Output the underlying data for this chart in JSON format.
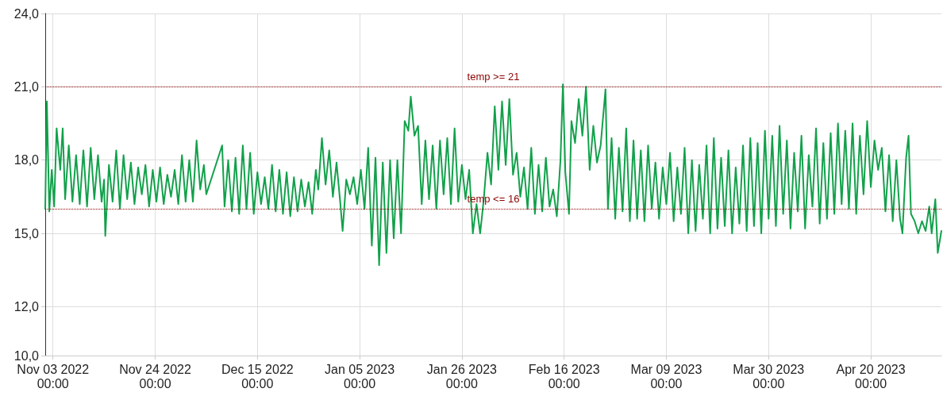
{
  "chart_data": {
    "type": "line",
    "grid": true,
    "marker": "none",
    "line_style": "solid",
    "xlim": [
      "2022-11-01T10:00",
      "2023-05-04T12:00"
    ],
    "xticks": [
      {
        "value": "2022-11-03T00:00",
        "label": "Nov 03 2022\n00:00"
      },
      {
        "value": "2022-11-24T00:00",
        "label": "Nov 24 2022\n00:00"
      },
      {
        "value": "2022-12-15T00:00",
        "label": "Dec 15 2022\n00:00"
      },
      {
        "value": "2023-01-05T00:00",
        "label": "Jan 05 2023\n00:00"
      },
      {
        "value": "2023-01-26T00:00",
        "label": "Jan 26 2023\n00:00"
      },
      {
        "value": "2023-02-16T00:00",
        "label": "Feb 16 2023\n00:00"
      },
      {
        "value": "2023-03-09T00:00",
        "label": "Mar 09 2023\n00:00"
      },
      {
        "value": "2023-03-30T00:00",
        "label": "Mar 30 2023\n00:00"
      },
      {
        "value": "2023-04-20T00:00",
        "label": "Apr 20 2023\n00:00"
      }
    ],
    "ylim": [
      10,
      24
    ],
    "yticks": [
      {
        "value": 10,
        "label": "10,0"
      },
      {
        "value": 12,
        "label": "12,0"
      },
      {
        "value": 15,
        "label": "15,0"
      },
      {
        "value": 18,
        "label": "18,0"
      },
      {
        "value": 21,
        "label": "21,0"
      },
      {
        "value": 24,
        "label": "24,0"
      }
    ],
    "ref_lines": [
      {
        "axis": "y",
        "value": 21,
        "label": "temp >= 21",
        "color": "#8b0000",
        "line_style": "dotted"
      },
      {
        "axis": "y",
        "value": 16,
        "label": "temp <= 16",
        "color": "#8b0000",
        "line_style": "dotted"
      }
    ],
    "series": [
      {
        "color": "#12a14b",
        "x": [
          "2022-11-01T10:00",
          "2022-11-01T18:00",
          "2022-11-02T06:00",
          "2022-11-02T18:00",
          "2022-11-03T06:00",
          "2022-11-03T18:00",
          "2022-11-04T12:00",
          "2022-11-05T00:00",
          "2022-11-05T12:00",
          "2022-11-06T06:00",
          "2022-11-07T00:00",
          "2022-11-07T18:00",
          "2022-11-08T12:00",
          "2022-11-09T06:00",
          "2022-11-10T00:00",
          "2022-11-10T18:00",
          "2022-11-11T12:00",
          "2022-11-12T06:00",
          "2022-11-13T00:00",
          "2022-11-13T12:00",
          "2022-11-13T18:00",
          "2022-11-14T12:00",
          "2022-11-15T06:00",
          "2022-11-16T00:00",
          "2022-11-16T18:00",
          "2022-11-17T12:00",
          "2022-11-18T06:00",
          "2022-11-19T00:00",
          "2022-11-19T18:00",
          "2022-11-20T12:00",
          "2022-11-21T06:00",
          "2022-11-22T00:00",
          "2022-11-22T18:00",
          "2022-11-23T12:00",
          "2022-11-24T06:00",
          "2022-11-25T00:00",
          "2022-11-25T18:00",
          "2022-11-26T12:00",
          "2022-11-27T06:00",
          "2022-11-28T00:00",
          "2022-11-28T18:00",
          "2022-11-29T12:00",
          "2022-11-30T06:00",
          "2022-12-01T00:00",
          "2022-12-01T18:00",
          "2022-12-02T12:00",
          "2022-12-03T06:00",
          "2022-12-04T00:00",
          "2022-12-04T12:00",
          "2022-12-07T18:00",
          "2022-12-08T06:00",
          "2022-12-09T00:00",
          "2022-12-09T18:00",
          "2022-12-10T12:00",
          "2022-12-11T06:00",
          "2022-12-12T00:00",
          "2022-12-12T18:00",
          "2022-12-13T12:00",
          "2022-12-14T06:00",
          "2022-12-15T00:00",
          "2022-12-15T18:00",
          "2022-12-16T12:00",
          "2022-12-17T06:00",
          "2022-12-18T00:00",
          "2022-12-18T18:00",
          "2022-12-19T12:00",
          "2022-12-20T06:00",
          "2022-12-21T00:00",
          "2022-12-21T18:00",
          "2022-12-22T12:00",
          "2022-12-23T06:00",
          "2022-12-24T00:00",
          "2022-12-24T18:00",
          "2022-12-25T12:00",
          "2022-12-26T06:00",
          "2022-12-27T00:00",
          "2022-12-27T12:00",
          "2022-12-28T06:00",
          "2022-12-29T00:00",
          "2022-12-29T18:00",
          "2022-12-30T12:00",
          "2022-12-31T06:00",
          "2023-01-01T00:00",
          "2023-01-01T12:00",
          "2023-01-02T06:00",
          "2023-01-03T00:00",
          "2023-01-03T18:00",
          "2023-01-04T12:00",
          "2023-01-05T06:00",
          "2023-01-06T00:00",
          "2023-01-06T18:00",
          "2023-01-07T12:00",
          "2023-01-08T06:00",
          "2023-01-09T00:00",
          "2023-01-09T18:00",
          "2023-01-10T12:00",
          "2023-01-11T06:00",
          "2023-01-12T00:00",
          "2023-01-12T18:00",
          "2023-01-13T12:00",
          "2023-01-14T06:00",
          "2023-01-15T00:00",
          "2023-01-15T12:00",
          "2023-01-16T06:00",
          "2023-01-17T00:00",
          "2023-01-17T18:00",
          "2023-01-18T12:00",
          "2023-01-19T06:00",
          "2023-01-20T00:00",
          "2023-01-20T18:00",
          "2023-01-21T12:00",
          "2023-01-22T06:00",
          "2023-01-23T00:00",
          "2023-01-23T18:00",
          "2023-01-24T12:00",
          "2023-01-25T06:00",
          "2023-01-26T00:00",
          "2023-01-26T18:00",
          "2023-01-27T12:00",
          "2023-01-28T06:00",
          "2023-01-29T00:00",
          "2023-01-29T18:00",
          "2023-01-30T12:00",
          "2023-01-31T06:00",
          "2023-02-01T00:00",
          "2023-02-01T18:00",
          "2023-02-02T12:00",
          "2023-02-03T06:00",
          "2023-02-04T00:00",
          "2023-02-04T18:00",
          "2023-02-05T12:00",
          "2023-02-06T06:00",
          "2023-02-07T00:00",
          "2023-02-07T18:00",
          "2023-02-08T12:00",
          "2023-02-09T06:00",
          "2023-02-10T00:00",
          "2023-02-10T18:00",
          "2023-02-11T12:00",
          "2023-02-12T06:00",
          "2023-02-13T00:00",
          "2023-02-13T18:00",
          "2023-02-14T12:00",
          "2023-02-15T06:00",
          "2023-02-15T18:00",
          "2023-02-16T06:00",
          "2023-02-17T00:00",
          "2023-02-17T12:00",
          "2023-02-18T06:00",
          "2023-02-19T00:00",
          "2023-02-19T18:00",
          "2023-02-20T12:00",
          "2023-02-21T06:00",
          "2023-02-22T00:00",
          "2023-02-22T18:00",
          "2023-02-23T12:00",
          "2023-02-24T12:00",
          "2023-02-25T00:00",
          "2023-02-25T18:00",
          "2023-02-26T12:00",
          "2023-02-27T06:00",
          "2023-02-28T00:00",
          "2023-02-28T18:00",
          "2023-03-01T12:00",
          "2023-03-02T06:00",
          "2023-03-03T00:00",
          "2023-03-03T18:00",
          "2023-03-04T12:00",
          "2023-03-05T06:00",
          "2023-03-06T00:00",
          "2023-03-06T18:00",
          "2023-03-07T12:00",
          "2023-03-08T06:00",
          "2023-03-09T00:00",
          "2023-03-09T18:00",
          "2023-03-10T12:00",
          "2023-03-11T06:00",
          "2023-03-12T00:00",
          "2023-03-12T18:00",
          "2023-03-13T12:00",
          "2023-03-14T06:00",
          "2023-03-15T00:00",
          "2023-03-15T18:00",
          "2023-03-16T12:00",
          "2023-03-17T06:00",
          "2023-03-18T00:00",
          "2023-03-18T18:00",
          "2023-03-19T12:00",
          "2023-03-20T06:00",
          "2023-03-21T00:00",
          "2023-03-21T18:00",
          "2023-03-22T12:00",
          "2023-03-23T06:00",
          "2023-03-24T00:00",
          "2023-03-24T18:00",
          "2023-03-25T12:00",
          "2023-03-26T06:00",
          "2023-03-27T00:00",
          "2023-03-27T18:00",
          "2023-03-28T12:00",
          "2023-03-29T06:00",
          "2023-03-30T00:00",
          "2023-03-30T18:00",
          "2023-03-31T12:00",
          "2023-04-01T06:00",
          "2023-04-02T00:00",
          "2023-04-02T18:00",
          "2023-04-03T12:00",
          "2023-04-04T06:00",
          "2023-04-05T00:00",
          "2023-04-05T18:00",
          "2023-04-06T12:00",
          "2023-04-07T06:00",
          "2023-04-08T00:00",
          "2023-04-08T18:00",
          "2023-04-09T12:00",
          "2023-04-10T06:00",
          "2023-04-11T00:00",
          "2023-04-11T18:00",
          "2023-04-12T12:00",
          "2023-04-13T06:00",
          "2023-04-14T00:00",
          "2023-04-14T18:00",
          "2023-04-15T12:00",
          "2023-04-16T06:00",
          "2023-04-17T00:00",
          "2023-04-17T18:00",
          "2023-04-18T12:00",
          "2023-04-19T06:00",
          "2023-04-20T00:00",
          "2023-04-20T18:00",
          "2023-04-21T12:00",
          "2023-04-22T06:00",
          "2023-04-23T00:00",
          "2023-04-23T18:00",
          "2023-04-24T12:00",
          "2023-04-25T06:00",
          "2023-04-26T00:00",
          "2023-04-26T12:00",
          "2023-04-27T06:00",
          "2023-04-27T18:00",
          "2023-04-28T06:00",
          "2023-04-29T00:00",
          "2023-04-29T18:00",
          "2023-04-30T12:00",
          "2023-05-01T06:00",
          "2023-05-02T00:00",
          "2023-05-02T12:00",
          "2023-05-03T06:00",
          "2023-05-03T18:00",
          "2023-05-04T12:00"
        ],
        "values": [
          16.0,
          20.4,
          15.9,
          17.6,
          16.1,
          19.3,
          17.6,
          19.3,
          16.4,
          18.6,
          16.3,
          18.2,
          16.2,
          18.4,
          16.1,
          18.5,
          16.4,
          18.2,
          16.3,
          17.2,
          14.9,
          17.8,
          16.3,
          18.4,
          16.0,
          18.2,
          16.4,
          17.9,
          16.2,
          17.7,
          16.6,
          17.8,
          16.1,
          17.6,
          16.3,
          17.7,
          16.2,
          17.4,
          16.5,
          17.6,
          16.2,
          18.2,
          16.3,
          18.0,
          16.3,
          18.8,
          16.8,
          17.8,
          16.6,
          18.6,
          16.1,
          18.0,
          15.9,
          18.1,
          15.8,
          18.6,
          16.0,
          18.3,
          15.8,
          17.5,
          16.2,
          17.3,
          16.0,
          17.8,
          15.9,
          17.6,
          15.8,
          17.5,
          15.7,
          17.3,
          15.9,
          17.2,
          16.1,
          17.1,
          15.8,
          17.6,
          16.8,
          18.9,
          17.0,
          18.4,
          16.5,
          17.9,
          16.3,
          15.1,
          17.2,
          16.6,
          17.3,
          16.2,
          17.6,
          16.0,
          18.5,
          14.5,
          18.1,
          13.7,
          17.9,
          14.2,
          18.0,
          14.8,
          18.0,
          15.0,
          19.6,
          19.2,
          20.6,
          19.0,
          19.4,
          16.2,
          18.8,
          16.4,
          18.6,
          16.0,
          18.8,
          16.6,
          18.9,
          16.2,
          19.3,
          16.3,
          17.8,
          16.4,
          17.6,
          15.0,
          16.2,
          15.0,
          16.4,
          18.3,
          17.0,
          20.2,
          17.6,
          20.4,
          17.8,
          20.5,
          17.4,
          18.3,
          16.5,
          17.7,
          16.0,
          18.5,
          15.8,
          17.8,
          15.9,
          18.1,
          16.1,
          16.8,
          15.7,
          18.0,
          21.1,
          17.5,
          15.8,
          19.6,
          18.7,
          20.5,
          19.0,
          21.0,
          17.6,
          19.4,
          17.9,
          18.6,
          20.9,
          16.0,
          18.9,
          15.6,
          18.5,
          15.9,
          19.3,
          15.5,
          18.8,
          15.6,
          18.4,
          15.5,
          18.6,
          16.0,
          17.9,
          15.6,
          17.7,
          16.2,
          18.3,
          15.5,
          17.7,
          15.8,
          18.5,
          15.0,
          18.0,
          15.1,
          17.8,
          15.6,
          18.6,
          15.0,
          18.9,
          15.2,
          18.1,
          15.3,
          18.4,
          15.0,
          17.7,
          15.4,
          18.6,
          15.1,
          18.9,
          15.3,
          18.7,
          15.0,
          19.2,
          15.6,
          19.0,
          15.3,
          19.4,
          15.8,
          18.8,
          15.2,
          18.3,
          15.9,
          19.0,
          15.2,
          18.2,
          16.1,
          19.3,
          15.4,
          18.7,
          15.6,
          19.1,
          15.8,
          19.5,
          16.2,
          19.2,
          16.0,
          19.5,
          15.8,
          19.0,
          16.6,
          19.6,
          16.9,
          18.8,
          17.6,
          18.5,
          15.9,
          18.2,
          15.5,
          18.0,
          15.6,
          15.0,
          18.1,
          19.0,
          15.8,
          15.5,
          15.0,
          15.5,
          15.1,
          16.1,
          15.0,
          16.4,
          14.2,
          15.1
        ]
      }
    ]
  }
}
